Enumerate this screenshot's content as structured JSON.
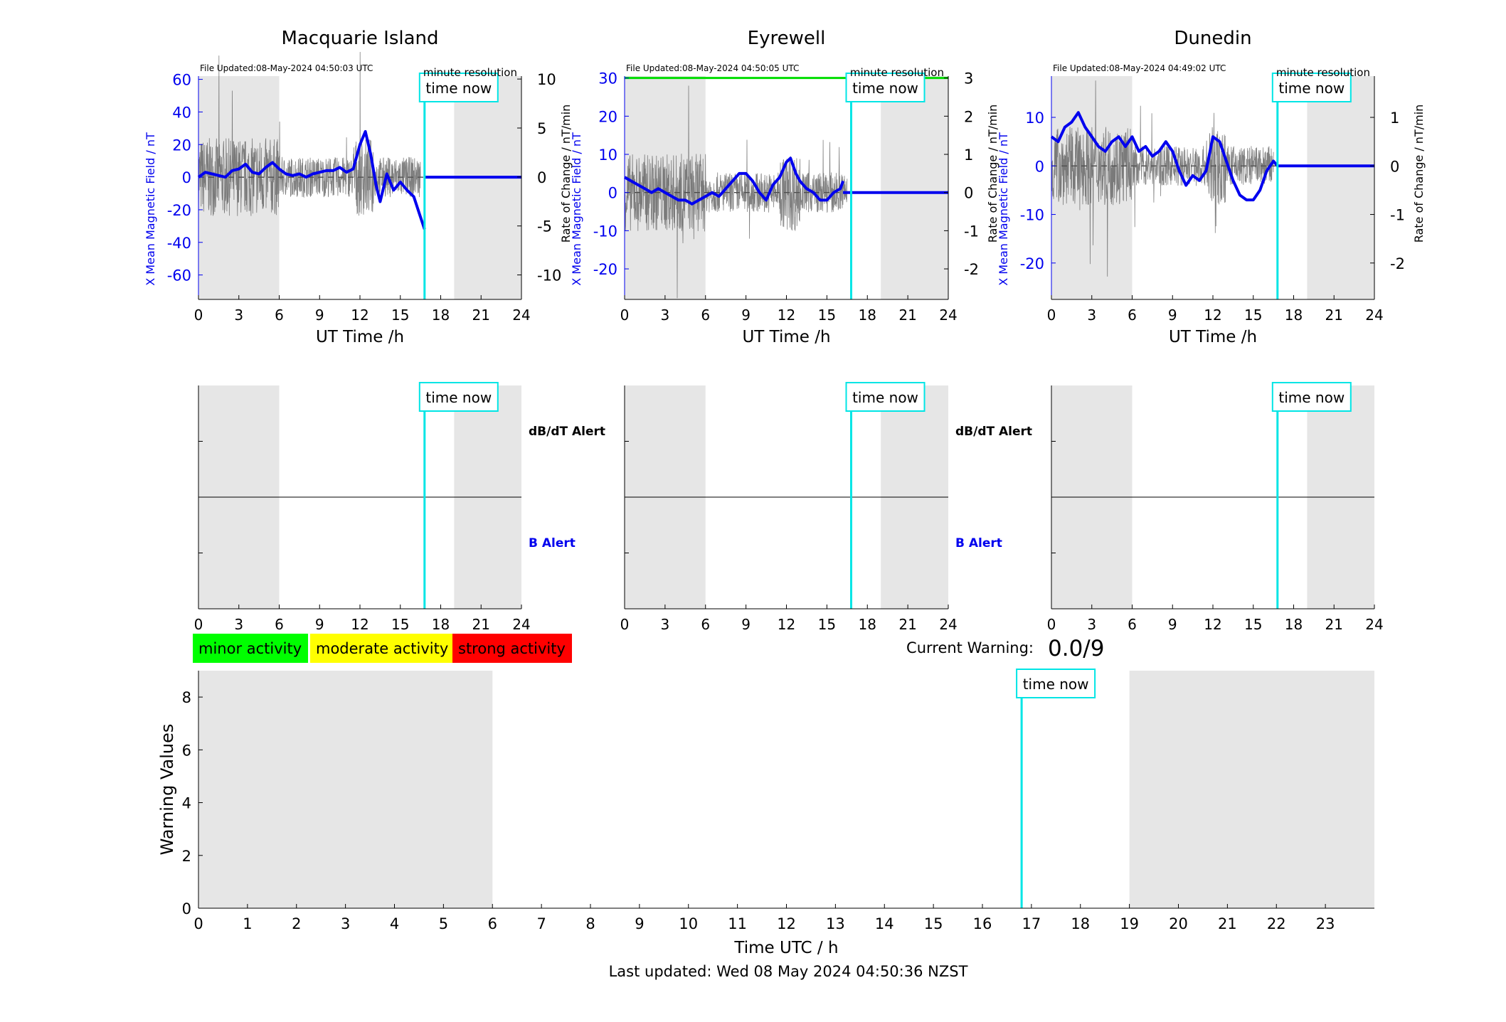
{
  "footer": {
    "last_updated": "Last updated: Wed 08 May 2024 04:50:36 NZST"
  },
  "common": {
    "time_now_label": "time now",
    "resolution_label": "minute resolution",
    "x_label": "UT Time /h",
    "x_ticks": [
      0,
      3,
      6,
      9,
      12,
      15,
      18,
      21,
      24
    ],
    "right_axis_label": "Rate of Change / nT/min",
    "left_axis_label": "X Mean Magnetic Field / nT",
    "dbdt_alert_label": "dB/dT Alert",
    "b_alert_label": "B Alert",
    "time_now_hour": 16.8,
    "night_shading_hours": [
      [
        0,
        6
      ],
      [
        19,
        24
      ]
    ],
    "colors": {
      "field": "#0000ee",
      "rate": "#555555",
      "time_now": "#00e5e5",
      "shade": "#e6e6e6",
      "threshold": "#00dd00"
    }
  },
  "legend": {
    "minor": {
      "label": "minor activity",
      "color": "#00ff00"
    },
    "moderate": {
      "label": "moderate activity",
      "color": "#ffff00"
    },
    "strong": {
      "label": "strong activity",
      "color": "#ff0000"
    }
  },
  "current_warning": {
    "label": "Current Warning:",
    "value": "0.0/9"
  },
  "stations": [
    {
      "name": "Macquarie Island",
      "file_updated": "File Updated:08-May-2024 04:50:03 UTC",
      "left_ylim": [
        -75,
        62
      ],
      "left_ticks": [
        60,
        40,
        20,
        0,
        -20,
        -40,
        -60
      ],
      "right_ylim": [
        -12.5,
        10.3
      ],
      "right_ticks": [
        10,
        5,
        0,
        -5,
        -10
      ],
      "show_left_label": true,
      "show_right_label": true,
      "show_alert_labels": true,
      "threshold_line": false,
      "field_series": [
        [
          0,
          0
        ],
        [
          0.5,
          3
        ],
        [
          1,
          2
        ],
        [
          1.5,
          1
        ],
        [
          2,
          0
        ],
        [
          2.5,
          4
        ],
        [
          3,
          5
        ],
        [
          3.5,
          8
        ],
        [
          4,
          3
        ],
        [
          4.5,
          2
        ],
        [
          5,
          6
        ],
        [
          5.5,
          9
        ],
        [
          6,
          5
        ],
        [
          6.5,
          2
        ],
        [
          7,
          1
        ],
        [
          7.5,
          2
        ],
        [
          8,
          0
        ],
        [
          8.5,
          2
        ],
        [
          9,
          3
        ],
        [
          9.5,
          4
        ],
        [
          10,
          4
        ],
        [
          10.5,
          6
        ],
        [
          11,
          3
        ],
        [
          11.5,
          5
        ],
        [
          12,
          20
        ],
        [
          12.4,
          28
        ],
        [
          12.8,
          14
        ],
        [
          13.2,
          -5
        ],
        [
          13.5,
          -15
        ],
        [
          14,
          2
        ],
        [
          14.5,
          -8
        ],
        [
          15,
          -3
        ],
        [
          15.5,
          -8
        ],
        [
          16,
          -12
        ],
        [
          16.4,
          -22
        ],
        [
          16.8,
          -32
        ]
      ],
      "flat_after": 0
    },
    {
      "name": "Eyrewell",
      "file_updated": "File Updated:08-May-2024 04:50:05 UTC",
      "left_ylim": [
        -28,
        30.5
      ],
      "left_ticks": [
        30,
        20,
        10,
        0,
        -10,
        -20
      ],
      "right_ylim": [
        -2.8,
        3.05
      ],
      "right_ticks": [
        3,
        2,
        1,
        0,
        -1,
        -2
      ],
      "show_left_label": true,
      "show_right_label": true,
      "show_alert_labels": true,
      "threshold_line": true,
      "field_series": [
        [
          0,
          4
        ],
        [
          0.5,
          3
        ],
        [
          1,
          2
        ],
        [
          1.5,
          1
        ],
        [
          2,
          0
        ],
        [
          2.5,
          1
        ],
        [
          3,
          0
        ],
        [
          3.5,
          -1
        ],
        [
          4,
          -2
        ],
        [
          4.5,
          -2
        ],
        [
          5,
          -3
        ],
        [
          5.5,
          -2
        ],
        [
          6,
          -1
        ],
        [
          6.5,
          0
        ],
        [
          7,
          -1
        ],
        [
          7.5,
          1
        ],
        [
          8,
          3
        ],
        [
          8.5,
          5
        ],
        [
          9,
          5
        ],
        [
          9.5,
          3
        ],
        [
          10,
          0
        ],
        [
          10.5,
          -2
        ],
        [
          11,
          2
        ],
        [
          11.5,
          4
        ],
        [
          12,
          8
        ],
        [
          12.3,
          9
        ],
        [
          12.7,
          5
        ],
        [
          13,
          3
        ],
        [
          13.5,
          1
        ],
        [
          14,
          0
        ],
        [
          14.5,
          -2
        ],
        [
          15,
          -2
        ],
        [
          15.5,
          0
        ],
        [
          16,
          1
        ],
        [
          16.2,
          3
        ]
      ],
      "flat_after": 0
    },
    {
      "name": "Dunedin",
      "file_updated": "File Updated:08-May-2024 04:49:02 UTC",
      "left_ylim": [
        -27.5,
        18.5
      ],
      "left_ticks": [
        10,
        0,
        -10,
        -20
      ],
      "right_ylim": [
        -2.75,
        1.85
      ],
      "right_ticks": [
        1,
        0,
        -1,
        -2
      ],
      "show_left_label": true,
      "show_right_label": true,
      "show_alert_labels": false,
      "threshold_line": false,
      "field_series": [
        [
          0,
          6
        ],
        [
          0.5,
          5
        ],
        [
          1,
          8
        ],
        [
          1.5,
          9
        ],
        [
          2,
          11
        ],
        [
          2.5,
          8
        ],
        [
          3,
          6
        ],
        [
          3.5,
          4
        ],
        [
          4,
          3
        ],
        [
          4.5,
          5
        ],
        [
          5,
          6
        ],
        [
          5.5,
          4
        ],
        [
          6,
          6
        ],
        [
          6.5,
          3
        ],
        [
          7,
          4
        ],
        [
          7.5,
          2
        ],
        [
          8,
          3
        ],
        [
          8.5,
          5
        ],
        [
          9,
          3
        ],
        [
          9.5,
          -1
        ],
        [
          10,
          -4
        ],
        [
          10.5,
          -2
        ],
        [
          11,
          -3
        ],
        [
          11.5,
          -1
        ],
        [
          12,
          6
        ],
        [
          12.5,
          5
        ],
        [
          13,
          1
        ],
        [
          13.5,
          -3
        ],
        [
          14,
          -6
        ],
        [
          14.5,
          -7
        ],
        [
          15,
          -7
        ],
        [
          15.5,
          -5
        ],
        [
          16,
          -1
        ],
        [
          16.5,
          1
        ],
        [
          16.8,
          0
        ]
      ],
      "flat_after": 0
    }
  ],
  "warning_chart": {
    "ylabel": "Warning Values",
    "xlabel": "Time UTC / h",
    "x_ticks": [
      0,
      1,
      2,
      3,
      4,
      5,
      6,
      7,
      8,
      9,
      10,
      11,
      12,
      13,
      14,
      15,
      16,
      17,
      18,
      19,
      20,
      21,
      22,
      23
    ],
    "y_ticks": [
      0,
      2,
      4,
      6,
      8
    ],
    "ylim": [
      0,
      9
    ],
    "xlim": [
      0,
      24
    ],
    "night_shading_hours": [
      [
        0,
        6
      ],
      [
        19,
        24
      ]
    ]
  },
  "chart_data": [
    {
      "type": "line",
      "title": "Macquarie Island",
      "xlabel": "UT Time /h",
      "ylabel": "X Mean Magnetic Field / nT",
      "ylabel_right": "Rate of Change / nT/min",
      "xlim": [
        0,
        24
      ],
      "ylim": [
        -75,
        62
      ],
      "series": [
        {
          "values_ref": "stations.0.field_series"
        }
      ]
    },
    {
      "type": "line",
      "title": "Eyrewell",
      "xlabel": "UT Time /h",
      "ylabel": "X Mean Magnetic Field / nT",
      "ylabel_right": "Rate of Change / nT/min",
      "xlim": [
        0,
        24
      ],
      "ylim": [
        -28,
        30.5
      ],
      "series": [
        {
          "values_ref": "stations.1.field_series"
        }
      ]
    },
    {
      "type": "line",
      "title": "Dunedin",
      "xlabel": "UT Time /h",
      "ylabel": "X Mean Magnetic Field / nT",
      "ylabel_right": "Rate of Change / nT/min",
      "xlim": [
        0,
        24
      ],
      "ylim": [
        -27.5,
        18.5
      ],
      "series": [
        {
          "values_ref": "stations.2.field_series"
        }
      ]
    },
    {
      "type": "bar",
      "xlabel": "Time UTC / h",
      "ylabel": "Warning Values",
      "xlim": [
        0,
        24
      ],
      "ylim": [
        0,
        9
      ],
      "values": []
    }
  ]
}
